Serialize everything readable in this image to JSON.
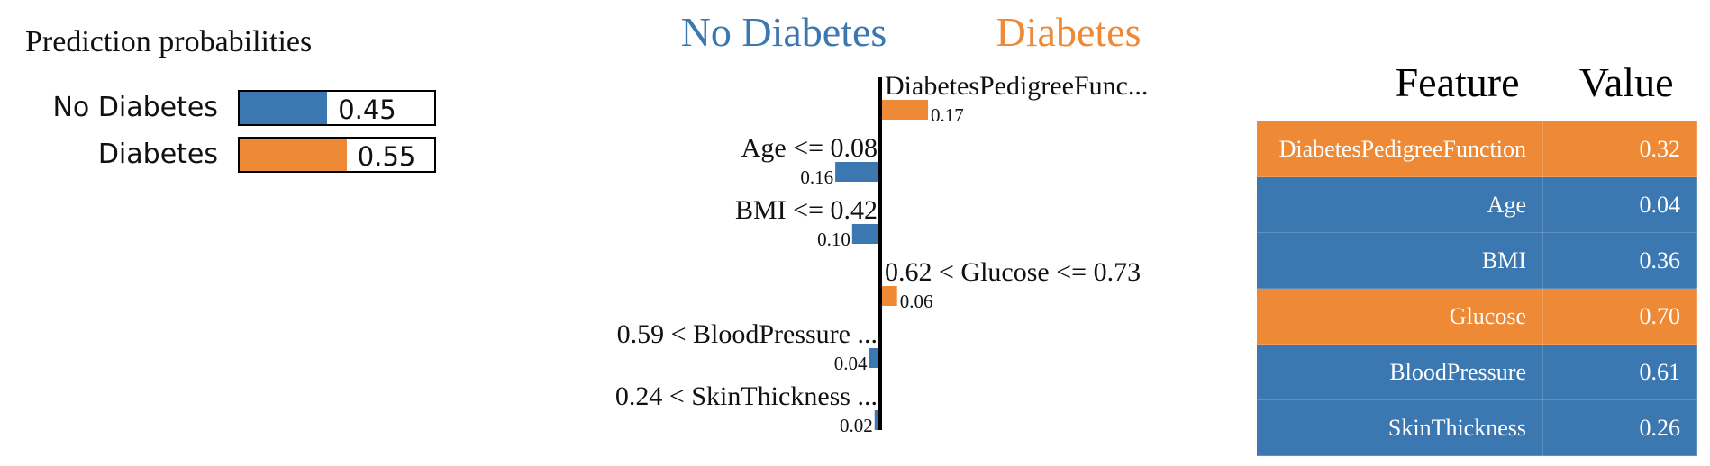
{
  "colors": {
    "no_diabetes": "#3B77B0",
    "diabetes": "#EE8A36",
    "axis": "#000000"
  },
  "prediction": {
    "title": "Prediction probabilities",
    "rows": [
      {
        "label": "No Diabetes",
        "value": 0.45,
        "value_text": "0.45",
        "class": "no_diabetes"
      },
      {
        "label": "Diabetes",
        "value": 0.55,
        "value_text": "0.55",
        "class": "diabetes"
      }
    ]
  },
  "chart_data": {
    "type": "bar",
    "orientation": "horizontal-diverging",
    "header_left": "No Diabetes",
    "header_right": "Diabetes",
    "features": [
      {
        "label": "DiabetesPedigreeFunc...",
        "weight": 0.17,
        "weight_text": "0.17",
        "class": "diabetes"
      },
      {
        "label": "Age <= 0.08",
        "weight": -0.16,
        "weight_text": "0.16",
        "class": "no_diabetes"
      },
      {
        "label": "BMI <= 0.42",
        "weight": -0.1,
        "weight_text": "0.10",
        "class": "no_diabetes"
      },
      {
        "label": "0.62 < Glucose <= 0.73",
        "weight": 0.06,
        "weight_text": "0.06",
        "class": "diabetes"
      },
      {
        "label": "0.59 < BloodPressure ...",
        "weight": -0.04,
        "weight_text": "0.04",
        "class": "no_diabetes"
      },
      {
        "label": "0.24 < SkinThickness ...",
        "weight": -0.02,
        "weight_text": "0.02",
        "class": "no_diabetes"
      }
    ]
  },
  "table": {
    "header_feature": "Feature",
    "header_value": "Value",
    "rows": [
      {
        "feature": "DiabetesPedigreeFunction",
        "value": "0.32",
        "class": "diabetes"
      },
      {
        "feature": "Age",
        "value": "0.04",
        "class": "no_diabetes"
      },
      {
        "feature": "BMI",
        "value": "0.36",
        "class": "no_diabetes"
      },
      {
        "feature": "Glucose",
        "value": "0.70",
        "class": "diabetes"
      },
      {
        "feature": "BloodPressure",
        "value": "0.61",
        "class": "no_diabetes"
      },
      {
        "feature": "SkinThickness",
        "value": "0.26",
        "class": "no_diabetes"
      }
    ]
  }
}
